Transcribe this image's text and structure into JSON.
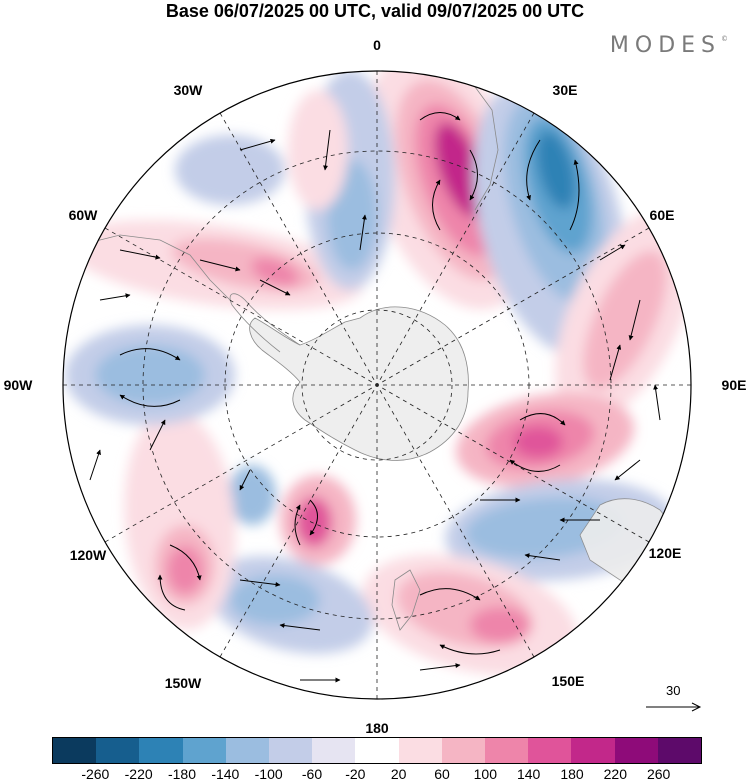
{
  "title": "Base 06/07/2025 00 UTC, valid 09/07/2025 00 UTC",
  "brand": {
    "name": "MODES",
    "mark": "©"
  },
  "map": {
    "projection": "south-polar-stereographic",
    "longitude_labels": [
      "0",
      "30E",
      "60E",
      "90E",
      "120E",
      "150E",
      "180",
      "150W",
      "120W",
      "90W",
      "60W",
      "30W"
    ],
    "features": [
      "filled anomaly contours",
      "wind vectors",
      "coastlines",
      "graticule"
    ],
    "anomaly_centers": [
      {
        "sign": "positive",
        "region": "south of Africa (20E)"
      },
      {
        "sign": "negative",
        "region": "40E"
      },
      {
        "sign": "positive",
        "region": "southern Indian Ocean (70E)"
      },
      {
        "sign": "positive",
        "region": "near 100E"
      },
      {
        "sign": "negative",
        "region": "south of Australia (110E)"
      },
      {
        "sign": "positive",
        "region": "south of New Zealand (160E)"
      },
      {
        "sign": "negative",
        "region": "south Pacific (150W)"
      },
      {
        "sign": "positive",
        "region": "south Pacific (120W)"
      },
      {
        "sign": "negative",
        "region": "Amundsen Sea (90W)"
      },
      {
        "sign": "positive",
        "region": "Drake Passage (60W)"
      }
    ]
  },
  "reference_vector": {
    "label": "30"
  },
  "colorbar": {
    "colors": [
      "#0b3a5e",
      "#165e8e",
      "#2d82b5",
      "#5fa3cf",
      "#9bbde0",
      "#c3cde8",
      "#e6e4f2",
      "#ffffff",
      "#fbdde3",
      "#f5b5c4",
      "#ee85aa",
      "#e0549a",
      "#c2288a",
      "#8e0b79",
      "#5d0a6a"
    ],
    "tick_labels": [
      "-260",
      "-220",
      "-180",
      "-140",
      "-100",
      "-60",
      "-20",
      "20",
      "60",
      "100",
      "140",
      "180",
      "220",
      "260"
    ]
  }
}
